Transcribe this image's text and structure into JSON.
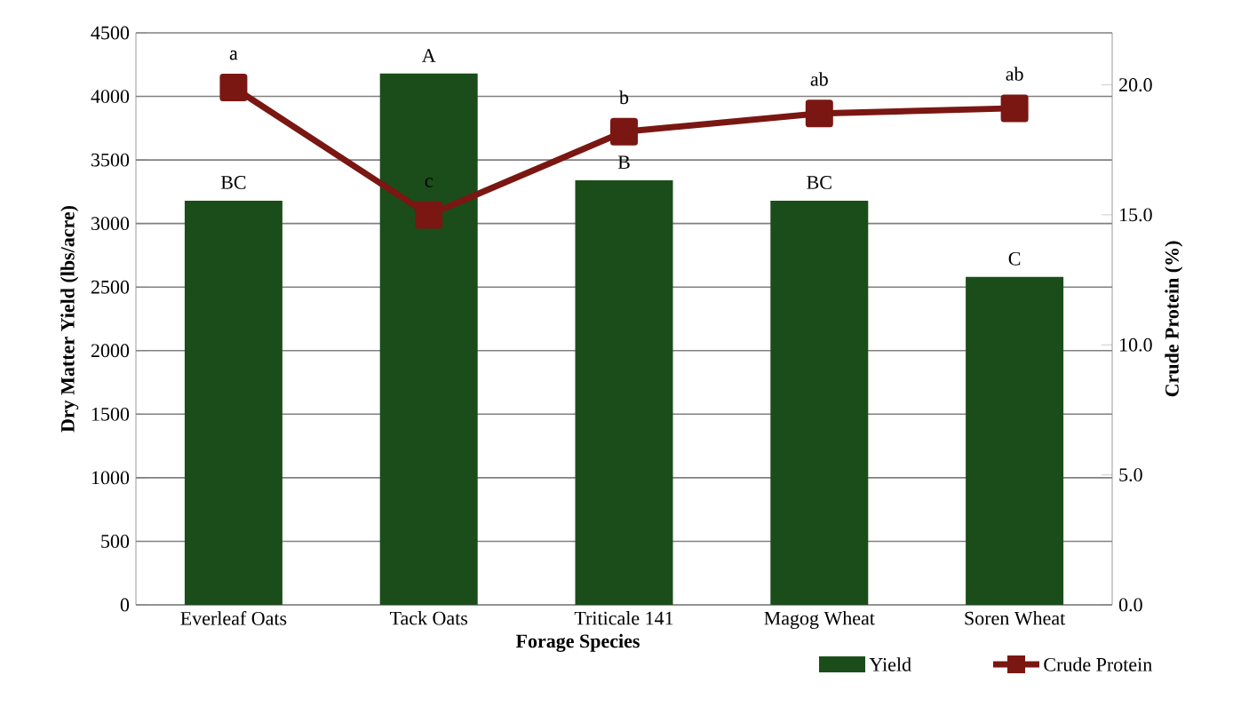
{
  "chart_data": {
    "type": "bar",
    "xlabel": "Forage Species",
    "ylabel": "Dry Matter Yield (lbs/acre)",
    "y2label": "Crude Protein (%)",
    "categories": [
      "Everleaf Oats",
      "Tack Oats",
      "Triticale 141",
      "Magog Wheat",
      "Soren Wheat"
    ],
    "series": [
      {
        "name": "Yield",
        "color": "#1b4d1a",
        "values": [
          3180,
          4180,
          3340,
          3180,
          2580
        ],
        "value_labels": [
          "BC",
          "A",
          "B",
          "BC",
          "C"
        ]
      },
      {
        "name": "Crude Protein",
        "type": "line",
        "axis": "y2",
        "color": "#7a1712",
        "marker": "square",
        "values": [
          19.9,
          15.0,
          18.2,
          18.9,
          19.1
        ],
        "value_labels": [
          "a",
          "c",
          "b",
          "ab",
          "ab"
        ]
      }
    ],
    "ylim": [
      0,
      4500
    ],
    "yticks": [
      0,
      500,
      1000,
      1500,
      2000,
      2500,
      3000,
      3500,
      4000,
      4500
    ],
    "y2lim": [
      0,
      22
    ],
    "y2ticks": [
      {
        "value": 0,
        "label": "0.0"
      },
      {
        "value": 5,
        "label": "5.0"
      },
      {
        "value": 10,
        "label": "10.0"
      },
      {
        "value": 15,
        "label": "15.0"
      },
      {
        "value": 20,
        "label": "20.0"
      }
    ],
    "grid": "y",
    "legend": "bottom"
  }
}
